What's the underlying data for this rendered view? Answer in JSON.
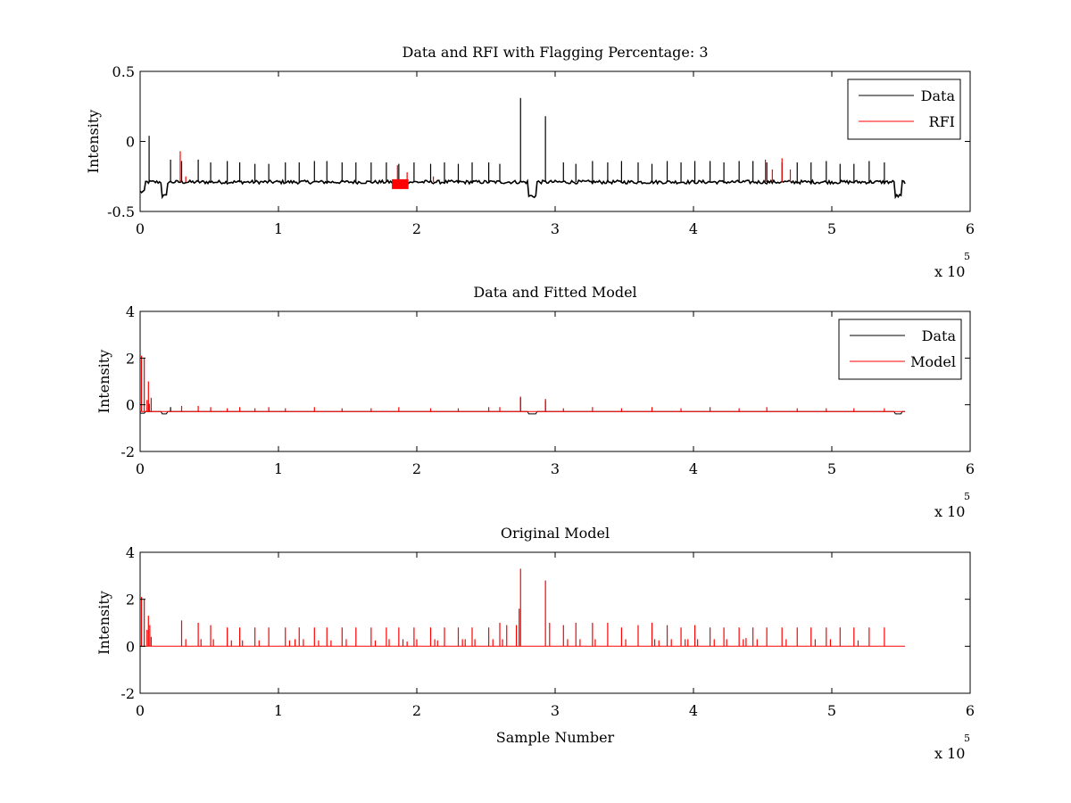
{
  "chart_data": [
    {
      "type": "line",
      "title": "Data and RFI with Flagging Percentage: 3",
      "xlabel": "",
      "ylabel": "Intensity",
      "xlim": [
        0,
        6
      ],
      "ylim": [
        -0.5,
        0.5
      ],
      "x_ticks": [
        "0",
        "1",
        "2",
        "3",
        "4",
        "5",
        "6"
      ],
      "y_ticks": [
        "-0.5",
        "0",
        "0.5"
      ],
      "x_multiplier": {
        "prefix": "x 10",
        "exponent": "5"
      },
      "legend": {
        "placement": "top-right",
        "entries": [
          "Data",
          "RFI"
        ]
      },
      "grid": false,
      "series": [
        {
          "name": "Data",
          "color": "#000000",
          "baseline": -0.29,
          "x_end": 5.53,
          "spikes": [
            [
              0.065,
              0.04
            ],
            [
              0.22,
              -0.13
            ],
            [
              0.3,
              -0.14
            ],
            [
              0.42,
              -0.13
            ],
            [
              0.51,
              -0.15
            ],
            [
              0.63,
              -0.14
            ],
            [
              0.72,
              -0.15
            ],
            [
              0.83,
              -0.16
            ],
            [
              0.93,
              -0.16
            ],
            [
              1.05,
              -0.15
            ],
            [
              1.15,
              -0.15
            ],
            [
              1.26,
              -0.14
            ],
            [
              1.35,
              -0.14
            ],
            [
              1.46,
              -0.15
            ],
            [
              1.56,
              -0.15
            ],
            [
              1.67,
              -0.15
            ],
            [
              1.78,
              -0.15
            ],
            [
              1.87,
              -0.16
            ],
            [
              1.98,
              -0.15
            ],
            [
              2.1,
              -0.16
            ],
            [
              2.2,
              -0.15
            ],
            [
              2.3,
              -0.16
            ],
            [
              2.4,
              -0.15
            ],
            [
              2.52,
              -0.15
            ],
            [
              2.6,
              -0.16
            ],
            [
              2.75,
              0.31
            ],
            [
              2.93,
              0.18
            ],
            [
              3.06,
              -0.15
            ],
            [
              3.15,
              -0.16
            ],
            [
              3.27,
              -0.14
            ],
            [
              3.38,
              -0.15
            ],
            [
              3.48,
              -0.14
            ],
            [
              3.6,
              -0.15
            ],
            [
              3.7,
              -0.16
            ],
            [
              3.81,
              -0.14
            ],
            [
              3.91,
              -0.15
            ],
            [
              4.01,
              -0.14
            ],
            [
              4.12,
              -0.14
            ],
            [
              4.22,
              -0.15
            ],
            [
              4.33,
              -0.14
            ],
            [
              4.43,
              -0.14
            ],
            [
              4.53,
              -0.15
            ],
            [
              4.64,
              -0.15
            ],
            [
              4.75,
              -0.15
            ],
            [
              4.85,
              -0.15
            ],
            [
              4.96,
              -0.14
            ],
            [
              5.06,
              -0.16
            ],
            [
              5.16,
              -0.16
            ],
            [
              5.27,
              -0.14
            ],
            [
              5.38,
              -0.15
            ]
          ]
        },
        {
          "name": "RFI",
          "color": "#ff0000",
          "spikes": [
            [
              0.29,
              -0.07
            ],
            [
              0.33,
              -0.25
            ],
            [
              1.86,
              -0.17
            ],
            [
              1.93,
              -0.22
            ],
            [
              2.12,
              -0.25
            ],
            [
              4.52,
              -0.13
            ],
            [
              4.57,
              -0.2
            ],
            [
              4.64,
              -0.12
            ],
            [
              4.7,
              -0.2
            ]
          ],
          "bands": [
            [
              1.82,
              1.94
            ]
          ]
        }
      ]
    },
    {
      "type": "line",
      "title": "Data and Fitted Model",
      "xlabel": "",
      "ylabel": "Intensity",
      "xlim": [
        0,
        6
      ],
      "ylim": [
        -2,
        4
      ],
      "x_ticks": [
        "0",
        "1",
        "2",
        "3",
        "4",
        "5",
        "6"
      ],
      "y_ticks": [
        "-2",
        "0",
        "2",
        "4"
      ],
      "x_multiplier": {
        "prefix": "x 10",
        "exponent": "5"
      },
      "legend": {
        "placement": "top-right",
        "entries": [
          "Data",
          "Model"
        ]
      },
      "grid": false,
      "series": [
        {
          "name": "Data",
          "color": "#000000",
          "baseline": -0.29,
          "x_end": 5.53,
          "spikes": [
            [
              0.065,
              0.04
            ],
            [
              0.22,
              -0.1
            ],
            [
              2.75,
              0.3
            ],
            [
              2.93,
              0.18
            ]
          ]
        },
        {
          "name": "Model",
          "color": "#ff0000",
          "baseline": -0.29,
          "x_end": 5.53,
          "spikes": [
            [
              0.01,
              2.1
            ],
            [
              0.03,
              2.0
            ],
            [
              0.05,
              0.2
            ],
            [
              0.06,
              1.0
            ],
            [
              0.08,
              0.3
            ],
            [
              0.3,
              -0.05
            ],
            [
              0.42,
              -0.05
            ],
            [
              0.51,
              -0.1
            ],
            [
              0.63,
              -0.15
            ],
            [
              0.72,
              -0.1
            ],
            [
              0.83,
              -0.15
            ],
            [
              0.93,
              -0.1
            ],
            [
              1.05,
              -0.15
            ],
            [
              1.26,
              -0.1
            ],
            [
              1.46,
              -0.15
            ],
            [
              1.67,
              -0.15
            ],
            [
              1.87,
              -0.1
            ],
            [
              2.1,
              -0.15
            ],
            [
              2.3,
              -0.15
            ],
            [
              2.52,
              -0.1
            ],
            [
              2.6,
              -0.1
            ],
            [
              2.75,
              0.35
            ],
            [
              2.93,
              0.25
            ],
            [
              3.06,
              -0.15
            ],
            [
              3.27,
              -0.1
            ],
            [
              3.48,
              -0.15
            ],
            [
              3.7,
              -0.1
            ],
            [
              3.91,
              -0.15
            ],
            [
              4.12,
              -0.1
            ],
            [
              4.33,
              -0.15
            ],
            [
              4.53,
              -0.1
            ],
            [
              4.75,
              -0.15
            ],
            [
              4.96,
              -0.15
            ],
            [
              5.16,
              -0.15
            ],
            [
              5.38,
              -0.15
            ]
          ]
        }
      ]
    },
    {
      "type": "line",
      "title": "Original Model",
      "xlabel": "Sample Number",
      "ylabel": "Intensity",
      "xlim": [
        0,
        6
      ],
      "ylim": [
        -2,
        4
      ],
      "x_ticks": [
        "0",
        "1",
        "2",
        "3",
        "4",
        "5",
        "6"
      ],
      "y_ticks": [
        "-2",
        "0",
        "2",
        "4"
      ],
      "x_multiplier": {
        "prefix": "x 10",
        "exponent": "5"
      },
      "legend": null,
      "grid": false,
      "series": [
        {
          "name": "",
          "color": "#ff0000",
          "baseline": 0,
          "x_end": 5.53,
          "spikes": [
            [
              0.01,
              2.1
            ],
            [
              0.03,
              2.0
            ],
            [
              0.05,
              0.7
            ],
            [
              0.06,
              1.3
            ],
            [
              0.07,
              0.9
            ],
            [
              0.08,
              0.4
            ],
            [
              0.3,
              1.1
            ],
            [
              0.33,
              0.3
            ],
            [
              0.42,
              1.0
            ],
            [
              0.44,
              0.3
            ],
            [
              0.51,
              0.9
            ],
            [
              0.53,
              0.3
            ],
            [
              0.63,
              0.8
            ],
            [
              0.66,
              0.25
            ],
            [
              0.72,
              0.8
            ],
            [
              0.74,
              0.25
            ],
            [
              0.83,
              0.8
            ],
            [
              0.86,
              0.25
            ],
            [
              0.93,
              0.8
            ],
            [
              1.05,
              0.8
            ],
            [
              1.08,
              0.25
            ],
            [
              1.12,
              0.3
            ],
            [
              1.15,
              0.8
            ],
            [
              1.18,
              0.3
            ],
            [
              1.26,
              0.8
            ],
            [
              1.29,
              0.25
            ],
            [
              1.35,
              0.8
            ],
            [
              1.38,
              0.25
            ],
            [
              1.46,
              0.8
            ],
            [
              1.49,
              0.3
            ],
            [
              1.56,
              0.8
            ],
            [
              1.67,
              0.8
            ],
            [
              1.7,
              0.25
            ],
            [
              1.78,
              0.8
            ],
            [
              1.8,
              0.3
            ],
            [
              1.87,
              0.8
            ],
            [
              1.9,
              0.3
            ],
            [
              1.93,
              0.2
            ],
            [
              1.98,
              0.8
            ],
            [
              2.0,
              0.3
            ],
            [
              2.1,
              0.8
            ],
            [
              2.13,
              0.3
            ],
            [
              2.15,
              0.25
            ],
            [
              2.2,
              0.8
            ],
            [
              2.3,
              0.8
            ],
            [
              2.33,
              0.3
            ],
            [
              2.35,
              0.3
            ],
            [
              2.4,
              0.8
            ],
            [
              2.42,
              0.3
            ],
            [
              2.52,
              0.8
            ],
            [
              2.55,
              0.3
            ],
            [
              2.6,
              1.0
            ],
            [
              2.62,
              0.3
            ],
            [
              2.65,
              0.9
            ],
            [
              2.72,
              0.9
            ],
            [
              2.74,
              1.6
            ],
            [
              2.75,
              3.3
            ],
            [
              2.93,
              2.8
            ],
            [
              2.96,
              1.0
            ],
            [
              3.06,
              0.9
            ],
            [
              3.09,
              0.3
            ],
            [
              3.15,
              1.0
            ],
            [
              3.18,
              0.3
            ],
            [
              3.27,
              1.0
            ],
            [
              3.29,
              0.3
            ],
            [
              3.38,
              1.0
            ],
            [
              3.48,
              0.8
            ],
            [
              3.51,
              0.3
            ],
            [
              3.6,
              0.9
            ],
            [
              3.7,
              1.0
            ],
            [
              3.72,
              0.3
            ],
            [
              3.75,
              0.25
            ],
            [
              3.81,
              0.9
            ],
            [
              3.84,
              0.3
            ],
            [
              3.91,
              0.8
            ],
            [
              3.94,
              0.3
            ],
            [
              3.96,
              0.3
            ],
            [
              4.01,
              0.9
            ],
            [
              4.03,
              0.3
            ],
            [
              4.12,
              0.8
            ],
            [
              4.15,
              0.3
            ],
            [
              4.22,
              0.8
            ],
            [
              4.24,
              0.3
            ],
            [
              4.33,
              0.8
            ],
            [
              4.36,
              0.3
            ],
            [
              4.38,
              0.35
            ],
            [
              4.43,
              0.8
            ],
            [
              4.46,
              0.3
            ],
            [
              4.53,
              0.8
            ],
            [
              4.64,
              0.8
            ],
            [
              4.67,
              0.3
            ],
            [
              4.75,
              0.8
            ],
            [
              4.85,
              0.8
            ],
            [
              4.88,
              0.3
            ],
            [
              4.96,
              0.8
            ],
            [
              4.99,
              0.3
            ],
            [
              5.06,
              0.8
            ],
            [
              5.16,
              0.8
            ],
            [
              5.19,
              0.25
            ],
            [
              5.27,
              0.8
            ],
            [
              5.38,
              0.8
            ]
          ]
        }
      ]
    }
  ]
}
